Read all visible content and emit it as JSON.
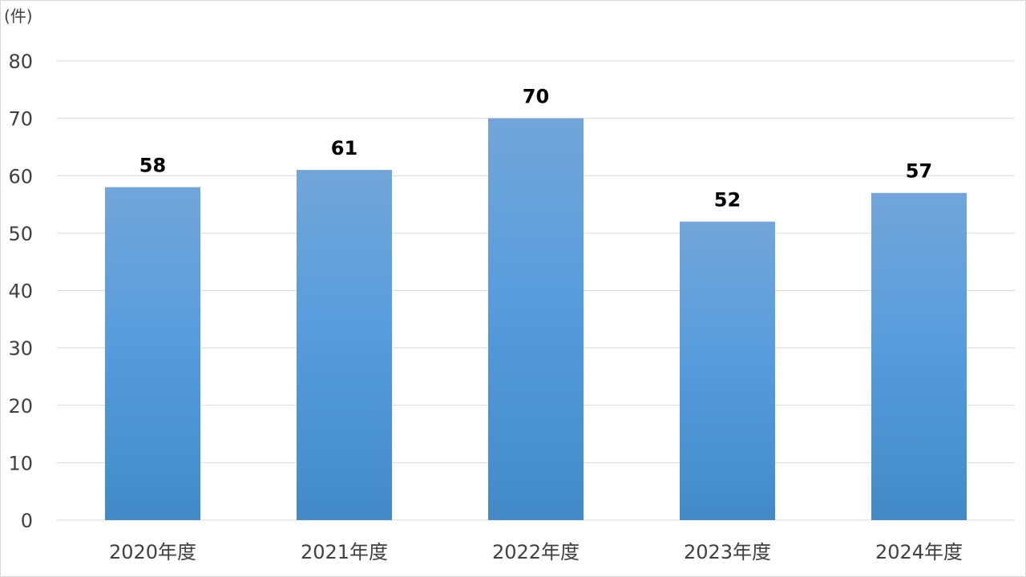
{
  "chart_data": {
    "type": "bar",
    "title": "",
    "unit_label": "(件)",
    "xlabel": "",
    "ylabel": "",
    "categories": [
      "2020年度",
      "2021年度",
      "2022年度",
      "2023年度",
      "2024年度"
    ],
    "values": [
      58,
      61,
      70,
      52,
      57
    ],
    "ylim": [
      0,
      80
    ],
    "yticks": [
      "0",
      "10",
      "20",
      "30",
      "40",
      "50",
      "60",
      "70",
      "80"
    ],
    "data_labels": [
      "58",
      "61",
      "70",
      "52",
      "57"
    ],
    "grid": true,
    "legend": "none",
    "bar_color_top": "#72a6da",
    "bar_color_mid": "#559bdc",
    "bar_color_bottom": "#428ac7",
    "gridline_color": "#d9d9d9"
  }
}
